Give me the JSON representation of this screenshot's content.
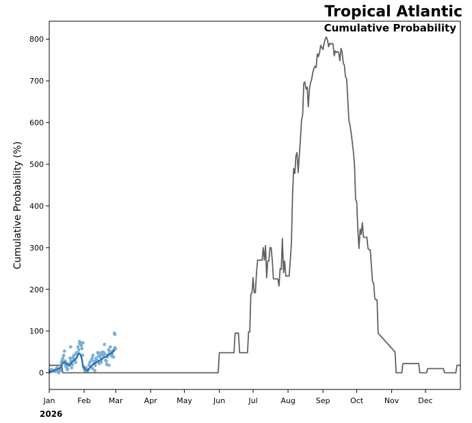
{
  "chart_data": {
    "type": "line",
    "title": "Tropical Atlantic",
    "subtitle": "Cumulative Probability",
    "ylabel": "Cumulative Probability (%)",
    "xlabel": "",
    "year_label": "2026",
    "ylim": [
      -40,
      843
    ],
    "xlim": [
      0,
      365
    ],
    "y_ticks": [
      0,
      100,
      200,
      300,
      400,
      500,
      600,
      700,
      800
    ],
    "month_ticks": [
      {
        "label": "Jan",
        "day": 0
      },
      {
        "label": "Feb",
        "day": 31
      },
      {
        "label": "Mar",
        "day": 59
      },
      {
        "label": "Apr",
        "day": 90
      },
      {
        "label": "May",
        "day": 120
      },
      {
        "label": "Jun",
        "day": 151
      },
      {
        "label": "Jul",
        "day": 181
      },
      {
        "label": "Aug",
        "day": 212
      },
      {
        "label": "Sep",
        "day": 243
      },
      {
        "label": "Oct",
        "day": 273
      },
      {
        "label": "Nov",
        "day": 304
      },
      {
        "label": "Dec",
        "day": 334
      }
    ],
    "grid": false,
    "colors": {
      "climatology": "#606060",
      "observed": "#2b6fb0",
      "points": "#7bafd4"
    },
    "series": [
      {
        "kind": "climatology",
        "x": [
          0,
          11,
          12,
          29,
          59,
          150,
          151,
          164,
          165,
          168,
          169,
          176,
          177,
          178,
          179,
          180,
          181,
          182,
          183,
          184,
          185,
          186,
          187,
          188,
          189,
          190,
          191,
          192,
          193,
          194,
          195,
          196,
          197,
          198,
          199,
          200,
          201,
          202,
          203,
          204,
          205,
          206,
          207,
          208,
          209,
          210,
          211,
          212,
          213,
          214,
          215,
          216,
          217,
          218,
          219,
          220,
          221,
          222,
          223,
          224,
          225,
          226,
          227,
          228,
          229,
          230,
          231,
          232,
          233,
          234,
          235,
          236,
          237,
          238,
          239,
          240,
          241,
          242,
          243,
          244,
          245,
          246,
          247,
          248,
          249,
          250,
          251,
          252,
          253,
          254,
          255,
          256,
          257,
          258,
          259,
          260,
          261,
          262,
          263,
          264,
          265,
          266,
          267,
          268,
          269,
          270,
          271,
          272,
          273,
          274,
          275,
          276,
          277,
          278,
          279,
          280,
          281,
          282,
          283,
          284,
          285,
          286,
          287,
          288,
          289,
          290,
          291,
          292,
          293,
          307,
          308,
          313,
          314,
          328,
          329,
          335,
          336,
          350,
          351,
          361,
          362,
          365
        ],
        "y": [
          18,
          18,
          0,
          0,
          0,
          0,
          48,
          48,
          95,
          95,
          48,
          48,
          98,
          98,
          188,
          192,
          228,
          192,
          192,
          240,
          270,
          270,
          270,
          270,
          270,
          300,
          270,
          305,
          228,
          268,
          268,
          300,
          300,
          270,
          225,
          225,
          225,
          225,
          225,
          208,
          250,
          248,
          322,
          240,
          268,
          232,
          232,
          232,
          232,
          270,
          310,
          428,
          490,
          478,
          520,
          528,
          480,
          520,
          560,
          605,
          620,
          695,
          697,
          680,
          685,
          638,
          682,
          695,
          705,
          720,
          730,
          735,
          732,
          765,
          758,
          768,
          785,
          780,
          775,
          790,
          800,
          805,
          798,
          782,
          790,
          788,
          790,
          788,
          760,
          772,
          768,
          770,
          768,
          748,
          778,
          770,
          742,
          738,
          710,
          705,
          660,
          605,
          595,
          575,
          555,
          530,
          500,
          415,
          410,
          340,
          298,
          345,
          332,
          360,
          325,
          325,
          325,
          325,
          298,
          295,
          295,
          258,
          218,
          215,
          178,
          175,
          175,
          95,
          92,
          50,
          0,
          0,
          22,
          22,
          0,
          0,
          10,
          10,
          0,
          0,
          18,
          18
        ]
      },
      {
        "kind": "observed",
        "x": [
          0,
          2,
          4,
          6,
          8,
          10,
          12,
          14,
          16,
          18,
          20,
          22,
          24,
          26,
          27,
          28,
          29,
          30,
          32,
          34,
          36,
          38,
          40,
          42,
          44,
          46,
          48,
          50,
          52,
          54,
          56,
          57,
          58
        ],
        "y": [
          2,
          3,
          5,
          7,
          9,
          12,
          24,
          26,
          20,
          18,
          25,
          30,
          35,
          45,
          46,
          42,
          32,
          15,
          8,
          5,
          12,
          18,
          22,
          25,
          28,
          32,
          36,
          38,
          42,
          45,
          48,
          52,
          55
        ]
      }
    ],
    "scatter": {
      "x": [
        0.5,
        1.2,
        2.0,
        3.1,
        4.0,
        5.2,
        6.1,
        7.0,
        7.8,
        8.5,
        9.2,
        10.1,
        10.8,
        11.5,
        12.1,
        12.8,
        13.5,
        14.2,
        14.9,
        15.6,
        16.3,
        17.0,
        17.8,
        18.5,
        19.2,
        19.9,
        20.6,
        21.3,
        22.0,
        22.7,
        23.4,
        24.1,
        24.8,
        25.5,
        26.2,
        26.9,
        27.6,
        28.3,
        29.0,
        29.7,
        30.4,
        31.1,
        31.8,
        32.5,
        33.2,
        33.9,
        34.6,
        35.3,
        36.0,
        36.7,
        37.4,
        38.1,
        38.8,
        39.5,
        40.2,
        40.9,
        41.6,
        42.3,
        43.0,
        43.7,
        44.4,
        45.1,
        45.8,
        46.5,
        47.2,
        47.9,
        48.6,
        49.3,
        50.0,
        50.7,
        51.4,
        52.1,
        52.8,
        53.5,
        54.2,
        54.9,
        55.6,
        56.3,
        57.0,
        57.6,
        58.2,
        58.8,
        14.0,
        16.0,
        19.0,
        21.0,
        23.5,
        25.5,
        27.0,
        28.5,
        30.0,
        38.5,
        40.5,
        44.0,
        46.0,
        49.0,
        51.0,
        53.0,
        55.5,
        57.8,
        58.3
      ],
      "y": [
        5,
        2,
        8,
        4,
        6,
        3,
        9,
        12,
        2,
        0,
        10,
        5,
        25,
        30,
        35,
        42,
        52,
        28,
        15,
        12,
        8,
        22,
        18,
        35,
        28,
        12,
        20,
        38,
        42,
        30,
        25,
        48,
        45,
        62,
        55,
        70,
        72,
        68,
        58,
        42,
        15,
        8,
        3,
        12,
        2,
        5,
        8,
        18,
        25,
        15,
        30,
        35,
        42,
        22,
        28,
        18,
        35,
        30,
        48,
        40,
        22,
        38,
        45,
        32,
        50,
        42,
        48,
        45,
        30,
        28,
        38,
        42,
        55,
        48,
        62,
        50,
        45,
        52,
        38,
        55,
        60,
        58,
        20,
        8,
        62,
        35,
        45,
        48,
        75,
        65,
        72,
        10,
        5,
        48,
        25,
        68,
        20,
        18,
        40,
        95,
        92
      ]
    }
  }
}
